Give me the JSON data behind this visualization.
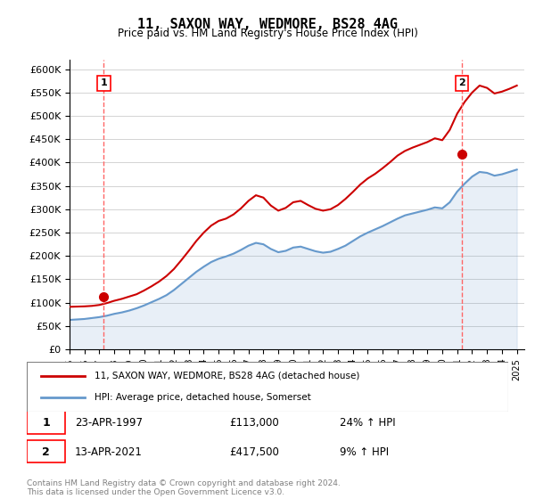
{
  "title": "11, SAXON WAY, WEDMORE, BS28 4AG",
  "subtitle": "Price paid vs. HM Land Registry's House Price Index (HPI)",
  "hpi_label": "HPI: Average price, detached house, Somerset",
  "price_label": "11, SAXON WAY, WEDMORE, BS28 4AG (detached house)",
  "sales": [
    {
      "num": 1,
      "date": "23-APR-1997",
      "price": 113000,
      "year": 1997.3,
      "pct": "24% ↑ HPI"
    },
    {
      "num": 2,
      "date": "13-APR-2021",
      "price": 417500,
      "year": 2021.3,
      "pct": "9% ↑ HPI"
    }
  ],
  "legend_entry1": "11, SAXON WAY, WEDMORE, BS28 4AG (detached house)",
  "legend_entry2": "HPI: Average price, detached house, Somerset",
  "footnote": "Contains HM Land Registry data © Crown copyright and database right 2024.\nThis data is licensed under the Open Government Licence v3.0.",
  "price_color": "#cc0000",
  "hpi_color": "#6699cc",
  "vline_color": "#ff6666",
  "ylim": [
    0,
    620000
  ],
  "yticks": [
    0,
    50000,
    100000,
    150000,
    200000,
    250000,
    300000,
    350000,
    400000,
    450000,
    500000,
    550000,
    600000
  ],
  "ytick_labels": [
    "£0",
    "£50K",
    "£100K",
    "£150K",
    "£200K",
    "£250K",
    "£300K",
    "£350K",
    "£400K",
    "£450K",
    "£500K",
    "£550K",
    "£600K"
  ],
  "hpi_years": [
    1995,
    1995.5,
    1996,
    1996.5,
    1997,
    1997.5,
    1998,
    1998.5,
    1999,
    1999.5,
    2000,
    2000.5,
    2001,
    2001.5,
    2002,
    2002.5,
    2003,
    2003.5,
    2004,
    2004.5,
    2005,
    2005.5,
    2006,
    2006.5,
    2007,
    2007.5,
    2008,
    2008.5,
    2009,
    2009.5,
    2010,
    2010.5,
    2011,
    2011.5,
    2012,
    2012.5,
    2013,
    2013.5,
    2014,
    2014.5,
    2015,
    2015.5,
    2016,
    2016.5,
    2017,
    2017.5,
    2018,
    2018.5,
    2019,
    2019.5,
    2020,
    2020.5,
    2021,
    2021.5,
    2022,
    2022.5,
    2023,
    2023.5,
    2024,
    2024.5,
    2025
  ],
  "hpi_values": [
    63000,
    64000,
    65000,
    67000,
    69000,
    72000,
    76000,
    79000,
    83000,
    88000,
    94000,
    101000,
    108000,
    116000,
    127000,
    140000,
    153000,
    166000,
    177000,
    187000,
    194000,
    199000,
    205000,
    213000,
    222000,
    228000,
    225000,
    215000,
    208000,
    211000,
    218000,
    220000,
    215000,
    210000,
    207000,
    209000,
    215000,
    222000,
    232000,
    242000,
    250000,
    257000,
    264000,
    272000,
    280000,
    287000,
    291000,
    295000,
    299000,
    304000,
    302000,
    315000,
    338000,
    355000,
    370000,
    380000,
    378000,
    372000,
    375000,
    380000,
    385000
  ],
  "price_years": [
    1995,
    1995.5,
    1996,
    1996.5,
    1997,
    1997.5,
    1998,
    1998.5,
    1999,
    1999.5,
    2000,
    2000.5,
    2001,
    2001.5,
    2002,
    2002.5,
    2003,
    2003.5,
    2004,
    2004.5,
    2005,
    2005.5,
    2006,
    2006.5,
    2007,
    2007.5,
    2008,
    2008.5,
    2009,
    2009.5,
    2010,
    2010.5,
    2011,
    2011.5,
    2012,
    2012.5,
    2013,
    2013.5,
    2014,
    2014.5,
    2015,
    2015.5,
    2016,
    2016.5,
    2017,
    2017.5,
    2018,
    2018.5,
    2019,
    2019.5,
    2020,
    2020.5,
    2021,
    2021.5,
    2022,
    2022.5,
    2023,
    2023.5,
    2024,
    2024.5,
    2025
  ],
  "price_values": [
    91000,
    91500,
    92000,
    93000,
    95000,
    99000,
    104000,
    108000,
    113000,
    118000,
    126000,
    135000,
    145000,
    157000,
    172000,
    191000,
    211000,
    232000,
    250000,
    265000,
    275000,
    280000,
    289000,
    302000,
    318000,
    330000,
    325000,
    308000,
    297000,
    303000,
    315000,
    318000,
    309000,
    301000,
    297000,
    300000,
    309000,
    322000,
    337000,
    353000,
    366000,
    376000,
    388000,
    401000,
    415000,
    425000,
    432000,
    438000,
    444000,
    452000,
    448000,
    470000,
    505000,
    530000,
    550000,
    565000,
    560000,
    548000,
    552000,
    558000,
    565000
  ]
}
